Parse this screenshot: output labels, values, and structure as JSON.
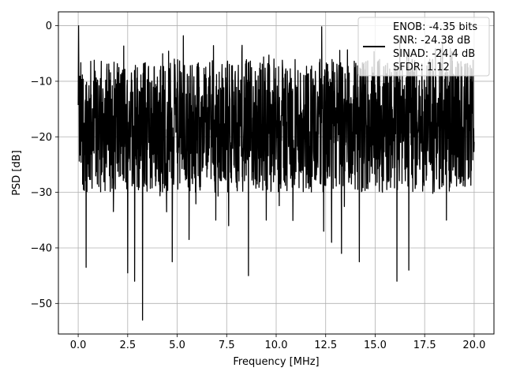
{
  "chart_data": {
    "type": "line",
    "xlabel": "Frequency [MHz]",
    "ylabel": "PSD [dB]",
    "xlim": [
      -1.0,
      21.0
    ],
    "ylim": [
      -55.5,
      2.5
    ],
    "xticks": [
      0.0,
      2.5,
      5.0,
      7.5,
      10.0,
      12.5,
      15.0,
      17.5,
      20.0
    ],
    "xtick_labels": [
      "0.0",
      "2.5",
      "5.0",
      "7.5",
      "10.0",
      "12.5",
      "15.0",
      "17.5",
      "20.0"
    ],
    "yticks": [
      0,
      -10,
      -20,
      -30,
      -40,
      -50
    ],
    "ytick_labels": [
      "0",
      "−10",
      "−20",
      "−30",
      "−40",
      "−50"
    ],
    "grid": true,
    "legend_position": "top-right",
    "legend": [
      "ENOB: -4.35 bits",
      "SNR: -24.38 dB",
      "SINAD: -24.4 dB",
      "SFDR: 1.12"
    ],
    "series": [
      {
        "color": "#000000",
        "description": "noise-dominated PSD, dense trace fluctuating roughly between -30 and -5 dB",
        "x_range": [
          0.0,
          20.0
        ],
        "y_band": [
          -30,
          -6
        ],
        "peaks": [
          {
            "x": 0.02,
            "y": 0.0
          }
        ],
        "dips": [
          {
            "x": 0.4,
            "y": -43.5
          },
          {
            "x": 2.5,
            "y": -44.5
          },
          {
            "x": 2.85,
            "y": -46.0
          },
          {
            "x": 3.25,
            "y": -53.0
          },
          {
            "x": 4.75,
            "y": -42.5
          },
          {
            "x": 5.6,
            "y": -38.5
          },
          {
            "x": 6.95,
            "y": -35.0
          },
          {
            "x": 7.6,
            "y": -36.0
          },
          {
            "x": 8.6,
            "y": -45.0
          },
          {
            "x": 9.5,
            "y": -35.0
          },
          {
            "x": 12.4,
            "y": -37.0
          },
          {
            "x": 12.8,
            "y": -39.0
          },
          {
            "x": 13.3,
            "y": -41.0
          },
          {
            "x": 14.2,
            "y": -42.5
          },
          {
            "x": 16.1,
            "y": -46.0
          },
          {
            "x": 16.7,
            "y": -44.0
          },
          {
            "x": 18.6,
            "y": -35.0
          }
        ]
      }
    ]
  }
}
